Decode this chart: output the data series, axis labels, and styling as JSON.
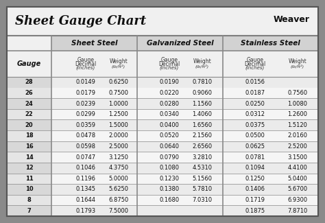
{
  "title": "Sheet Gauge Chart",
  "bg_outer": "#8a8a8a",
  "bg_inner": "#ffffff",
  "bg_header_section": "#d2d2d2",
  "bg_subheader": "#e8e8e8",
  "bg_gauge_col": "#d2d2d2",
  "bg_data_light": "#f0f0f0",
  "bg_data_dark": "#e0e0e0",
  "gauges": [
    28,
    26,
    24,
    22,
    20,
    18,
    16,
    14,
    12,
    11,
    10,
    8,
    7
  ],
  "sheet_steel_dec": [
    "0.0149",
    "0.0179",
    "0.0239",
    "0.0299",
    "0.0359",
    "0.0478",
    "0.0598",
    "0.0747",
    "0.1046",
    "0.1196",
    "0.1345",
    "0.1644",
    "0.1793"
  ],
  "sheet_steel_wt": [
    "0.6250",
    "0.7500",
    "1.0000",
    "1.2500",
    "1.5000",
    "2.0000",
    "2.5000",
    "3.1250",
    "4.3750",
    "5.0000",
    "5.6250",
    "6.8750",
    "7.5000"
  ],
  "galv_dec": [
    "0.0190",
    "0.0220",
    "0.0280",
    "0.0340",
    "0.0400",
    "0.0520",
    "0.0640",
    "0.0790",
    "0.1080",
    "0.1230",
    "0.1380",
    "0.1680",
    ""
  ],
  "galv_wt": [
    "0.7810",
    "0.9060",
    "1.1560",
    "1.4060",
    "1.6560",
    "2.1560",
    "2.6560",
    "3.2810",
    "4.5310",
    "5.1560",
    "5.7810",
    "7.0310",
    ""
  ],
  "stainless_dec": [
    "0.0156",
    "0.0187",
    "0.0250",
    "0.0312",
    "0.0375",
    "0.0500",
    "0.0625",
    "0.0781",
    "0.1094",
    "0.1250",
    "0.1406",
    "0.1719",
    "0.1875"
  ],
  "stainless_wt": [
    "",
    "0.7560",
    "1.0080",
    "1.2600",
    "1.5120",
    "2.0160",
    "2.5200",
    "3.1500",
    "4.4100",
    "5.0400",
    "5.6700",
    "6.9300",
    "7.8710"
  ],
  "line_color": "#888888",
  "dark_line_color": "#555555",
  "text_dark": "#111111",
  "text_mid": "#333333"
}
